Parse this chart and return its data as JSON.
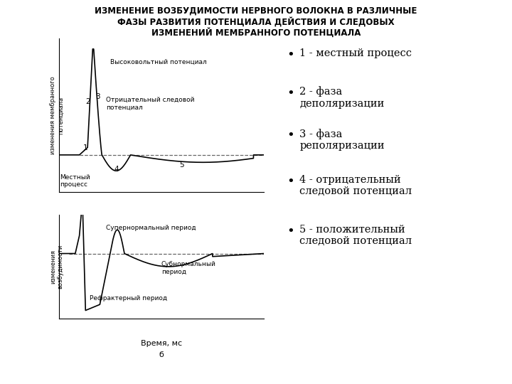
{
  "title_line1": "ИЗМЕНЕНИЕ ВОЗБУДИМОСТИ НЕРВНОГО ВОЛОКНА В РАЗЛИЧНЫЕ",
  "title_line2": "ФАЗЫ РАЗВИТИЯ ПОТЕНЦИАЛА ДЕЙСТВИЯ И СЛЕДОВЫХ",
  "title_line3": "ИЗМЕНЕНИЙ МЕМБРАННОГО ПОТЕНЦИАЛА",
  "legend_items": [
    "1 - местный процесс",
    "2 - фаза\nдеполяризации",
    "3 - фаза\nреполяризации",
    "4 - отрицательный\nследовой потенциал",
    "5 - положительный\nследовой потенциал"
  ],
  "xlabel": "Время, мс",
  "xlabel2": "б",
  "ylabel_top": "изменения мембранного\nпотенциала",
  "ylabel_bottom": "изменения\nвозбудимости",
  "background_color": "#ffffff",
  "line_color": "#000000",
  "dashed_color": "#666666"
}
